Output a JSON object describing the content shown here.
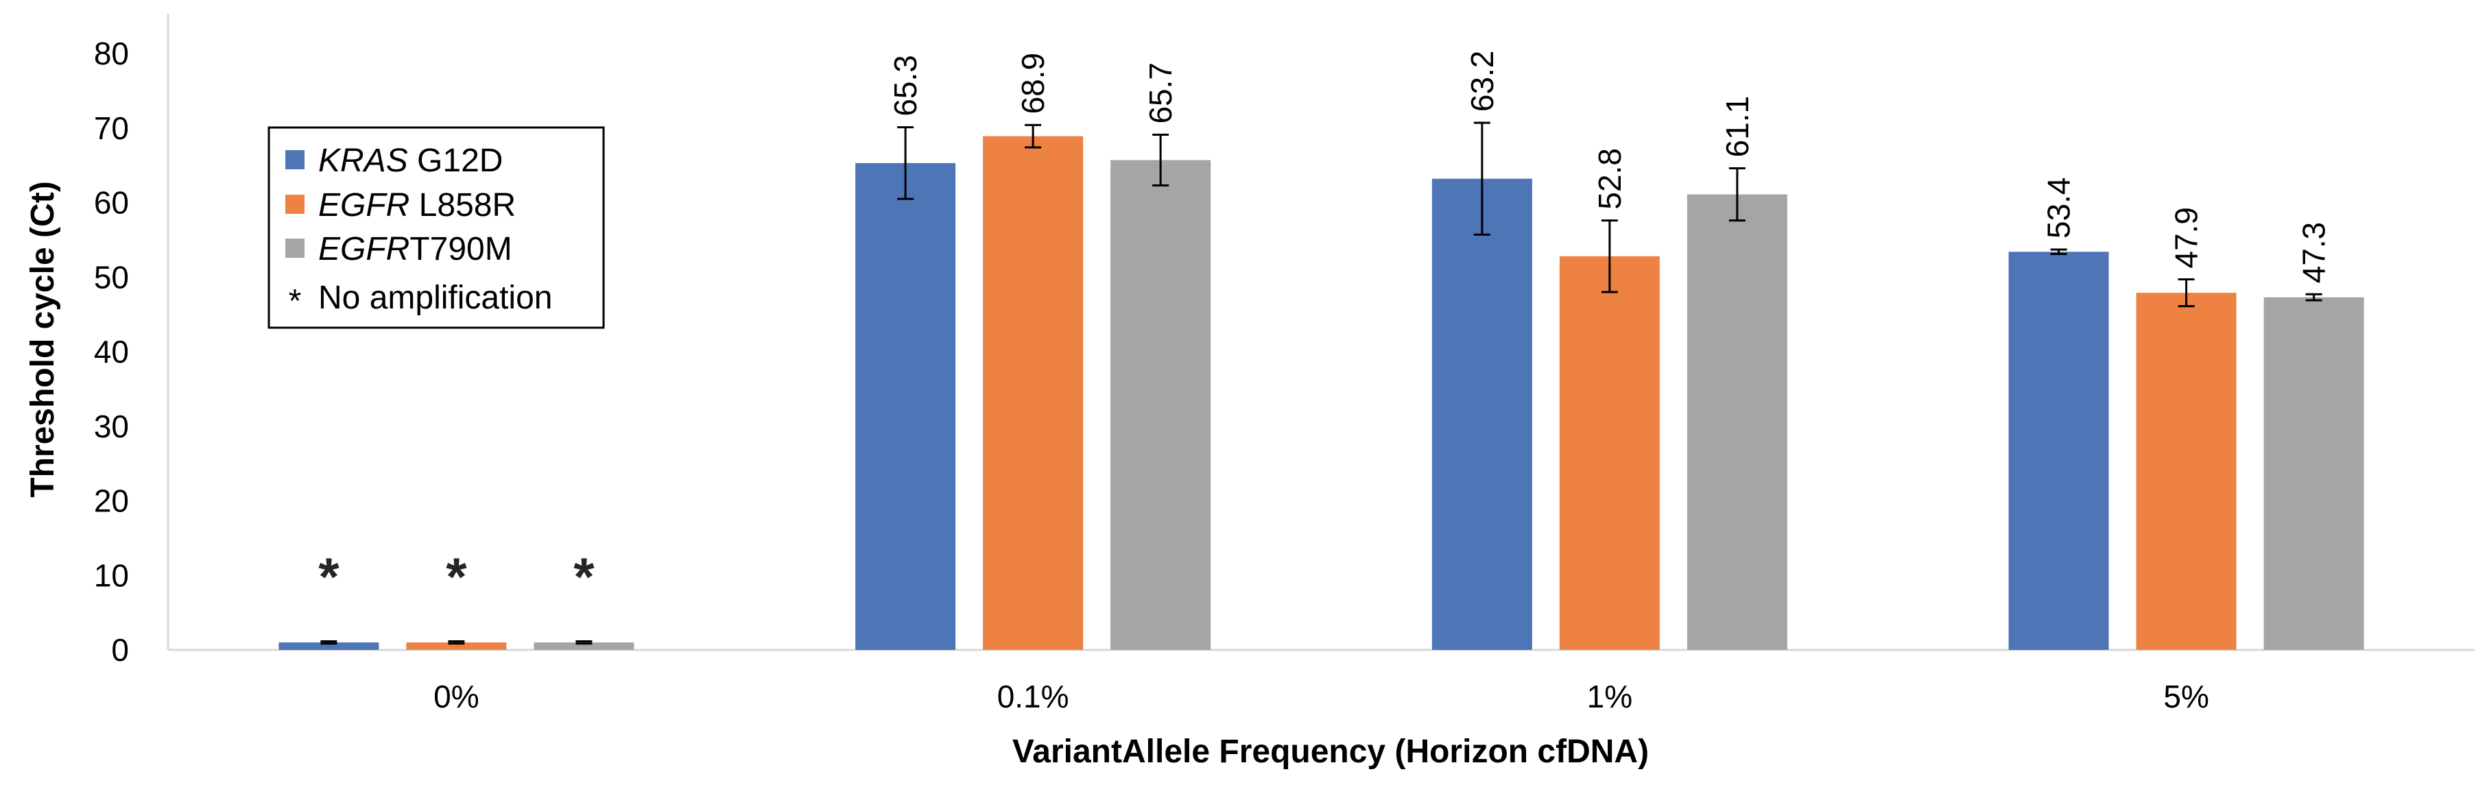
{
  "chart_data": {
    "type": "bar",
    "title": "",
    "xlabel": "VariantAllele Frequency (Horizon cfDNA)",
    "ylabel": "Threshold cycle (Ct)",
    "ylim": [
      0,
      80
    ],
    "yticks": [
      0,
      10,
      20,
      30,
      40,
      50,
      60,
      70,
      80
    ],
    "categories": [
      "0%",
      "0.1%",
      "1%",
      "5%"
    ],
    "series": [
      {
        "name_italic": "KRAS",
        "name_rest": " G12D",
        "color": "#4e75b6",
        "values": [
          1,
          65.3,
          63.2,
          53.4
        ],
        "errors": [
          0.15,
          4.8,
          7.5,
          0.3
        ],
        "labels": [
          "*",
          "65.3",
          "63.2",
          "53.4"
        ]
      },
      {
        "name_italic": "EGFR",
        "name_rest": " L858R",
        "color": "#ed8242",
        "values": [
          1,
          68.9,
          52.8,
          47.9
        ],
        "errors": [
          0.15,
          1.5,
          4.8,
          1.8
        ],
        "labels": [
          "*",
          "68.9",
          "52.8",
          "47.9"
        ]
      },
      {
        "name_italic": "EGFR",
        "name_rest": "T790M",
        "color": "#a5a5a5",
        "values": [
          1,
          65.7,
          61.1,
          47.3
        ],
        "errors": [
          0.15,
          3.4,
          3.5,
          0.4
        ],
        "labels": [
          "*",
          "65.7",
          "61.1",
          "47.3"
        ]
      }
    ],
    "legend": {
      "placement": "top-left",
      "note_symbol": "*",
      "note_text": "No amplification"
    },
    "grid": false
  }
}
